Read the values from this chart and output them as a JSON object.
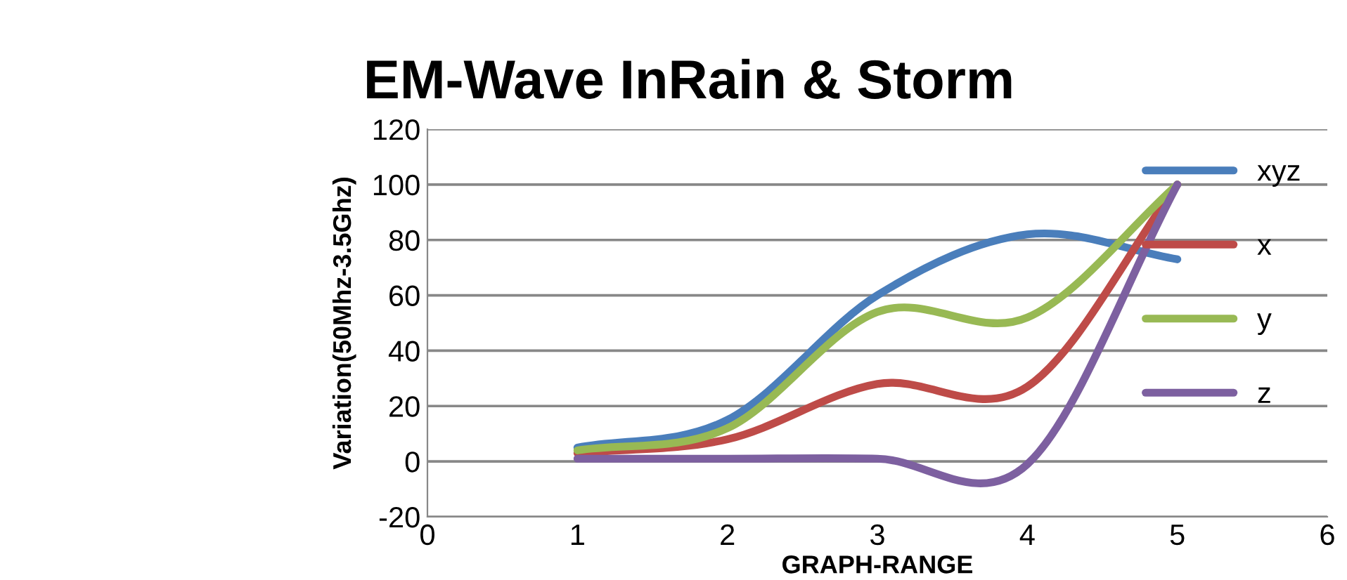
{
  "chart_data": {
    "type": "line",
    "title": "EM-Wave InRain & Storm",
    "xlabel": "GRAPH-RANGE",
    "ylabel": "Variation(50Mhz-3.5Ghz)",
    "x": [
      1,
      2,
      3,
      4,
      5
    ],
    "series": [
      {
        "name": "xyz",
        "color": "#4a7ebb",
        "values": [
          5,
          15,
          60,
          82,
          73
        ]
      },
      {
        "name": "x",
        "color": "#be4b48",
        "values": [
          3,
          8,
          28,
          27,
          100
        ]
      },
      {
        "name": "y",
        "color": "#98b954",
        "values": [
          4,
          12,
          54,
          52,
          100
        ]
      },
      {
        "name": "z",
        "color": "#7d60a0",
        "values": [
          1,
          1,
          1,
          -1,
          100
        ]
      }
    ],
    "xlim": [
      0,
      6
    ],
    "xticks": [
      0,
      1,
      2,
      3,
      4,
      5,
      6
    ],
    "ylim": [
      -20,
      120
    ],
    "yticks": [
      -20,
      0,
      20,
      40,
      60,
      80,
      100,
      120
    ],
    "grid": "y",
    "legend": "right",
    "marker": "none",
    "line_style": "solid"
  }
}
